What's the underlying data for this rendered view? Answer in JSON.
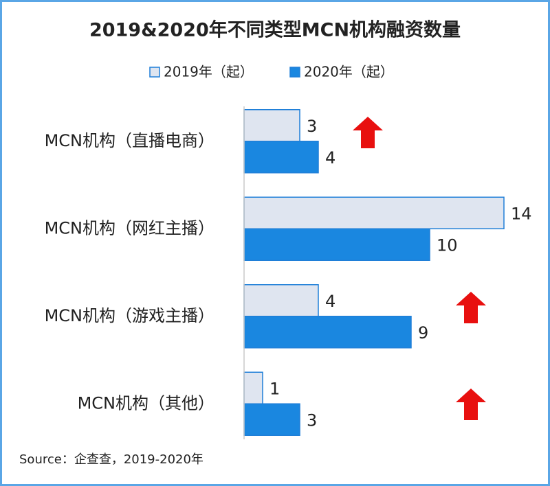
{
  "chart_data": {
    "type": "bar",
    "orientation": "horizontal",
    "title": "2019&2020年不同类型MCN机构融资数量",
    "categories": [
      "MCN机构（直播电商）",
      "MCN机构（网红主播）",
      "MCN机构（游戏主播）",
      "MCN机构（其他）"
    ],
    "series": [
      {
        "name": "2019年（起）",
        "color": "#dfe5f0",
        "values": [
          3,
          14,
          4,
          1
        ]
      },
      {
        "name": "2020年（起）",
        "color": "#1a87e0",
        "values": [
          4,
          10,
          9,
          3
        ]
      }
    ],
    "xlim": [
      0,
      16
    ],
    "source": "Source：企查查，2019-2020年"
  }
}
